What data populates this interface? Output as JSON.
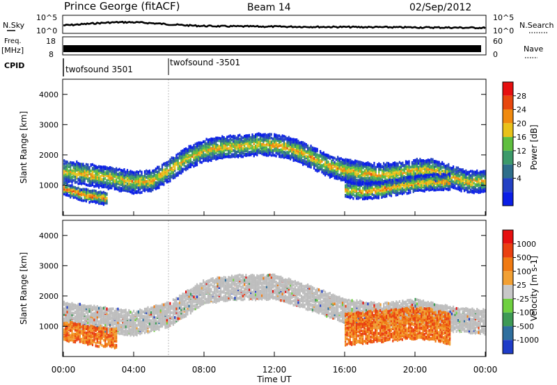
{
  "header": {
    "station": "Prince George (fitACF)",
    "beam": "Beam 14",
    "date": "02/Sep/2012"
  },
  "top_panels": {
    "nsky_label": "N.Sky",
    "nsky_ticks": [
      "10^5",
      "10^0"
    ],
    "nsearch_label": "N.Search",
    "nsearch_ticks": [
      "10^5",
      "10^0"
    ],
    "freq_label_1": "Freq.",
    "freq_label_2": "[MHz]",
    "freq_ticks": [
      "18",
      "8"
    ],
    "nave_label": "Nave",
    "nave_ticks": [
      "60",
      "0"
    ],
    "cpid_label": "CPID",
    "cpid_segments": [
      {
        "label": "twofsound 3501",
        "start": "00:00"
      },
      {
        "label": "twofsound -3501",
        "start": "06:00"
      }
    ]
  },
  "colors": {
    "power_scale": [
      "#0a1ee6",
      "#2341c4",
      "#2e6e8a",
      "#3c9a6a",
      "#5fbf3f",
      "#e9c21a",
      "#f08a0f",
      "#e8470d",
      "#e60f0f"
    ],
    "velocity_scale": [
      "#1e3cc8",
      "#2f6f9e",
      "#3e9a55",
      "#6fd040",
      "#c8c8c8",
      "#f2a033",
      "#f07a12",
      "#ea4010",
      "#e60f0f"
    ],
    "ground_scatter": "#bdbdbd"
  },
  "chart_data": [
    {
      "type": "heatmap",
      "name": "power",
      "ylabel": "Slant Range [km]",
      "yticks": [
        "1000",
        "2000",
        "3000",
        "4000"
      ],
      "ylim": [
        0,
        4500
      ],
      "xlim": [
        0,
        24
      ],
      "colorbar_label": "Power [dB]",
      "colorbar_ticks": [
        "4",
        "8",
        "12",
        "16",
        "20",
        "24",
        "28"
      ],
      "colorbar_range": [
        0,
        32
      ],
      "bands": [
        {
          "x": [
            0,
            1,
            2,
            3,
            4,
            5,
            6,
            7,
            8,
            9,
            10,
            11,
            12,
            13,
            14,
            15,
            16,
            17,
            18,
            19,
            20,
            21,
            22,
            23,
            24
          ],
          "y": [
            1500,
            1450,
            1350,
            1250,
            1150,
            1200,
            1550,
            1950,
            2200,
            2300,
            2350,
            2400,
            2380,
            2250,
            2000,
            1700,
            1550,
            1450,
            1400,
            1450,
            1550,
            1550,
            1350,
            1150,
            1200
          ],
          "thickness": 350,
          "peak_db": 22
        },
        {
          "x": [
            0,
            0.5,
            1,
            1.5,
            2,
            2.5
          ],
          "y": [
            950,
            850,
            750,
            700,
            650,
            620
          ],
          "thickness": 200,
          "peak_db": 26
        },
        {
          "x": [
            16,
            17,
            18,
            19,
            20,
            21,
            22
          ],
          "y": [
            900,
            850,
            900,
            1000,
            1100,
            1150,
            1150
          ],
          "thickness": 250,
          "peak_db": 24
        }
      ]
    },
    {
      "type": "heatmap",
      "name": "velocity",
      "ylabel": "Slant Range [km]",
      "yticks": [
        "1000",
        "2000",
        "3000",
        "4000"
      ],
      "ylim": [
        0,
        4500
      ],
      "xlim": [
        0,
        24
      ],
      "colorbar_label": "Velocity [m s-1]",
      "colorbar_ticks": [
        "1000",
        "500",
        "100",
        "25",
        "-25",
        "-100",
        "-500",
        "-1000"
      ],
      "bands": [
        {
          "x": [
            0,
            2,
            4,
            6,
            8,
            10,
            12,
            14,
            16,
            18,
            20,
            22,
            24
          ],
          "y": [
            1450,
            1300,
            1150,
            1450,
            2200,
            2350,
            2350,
            2000,
            1550,
            1400,
            1550,
            1300,
            1200
          ],
          "thickness": 400,
          "velocity": 0,
          "label": "ground scatter"
        },
        {
          "x": [
            16,
            18,
            20,
            21,
            22
          ],
          "y": [
            950,
            1050,
            1150,
            1100,
            950
          ],
          "thickness": 500,
          "velocity": -400
        },
        {
          "x": [
            0,
            1,
            2,
            3
          ],
          "y": [
            900,
            800,
            700,
            650
          ],
          "thickness": 300,
          "velocity": -300
        }
      ]
    }
  ],
  "xaxis": {
    "ticks": [
      "00:00",
      "04:00",
      "08:00",
      "12:00",
      "16:00",
      "20:00",
      "00:00"
    ],
    "label": "Time UT"
  }
}
